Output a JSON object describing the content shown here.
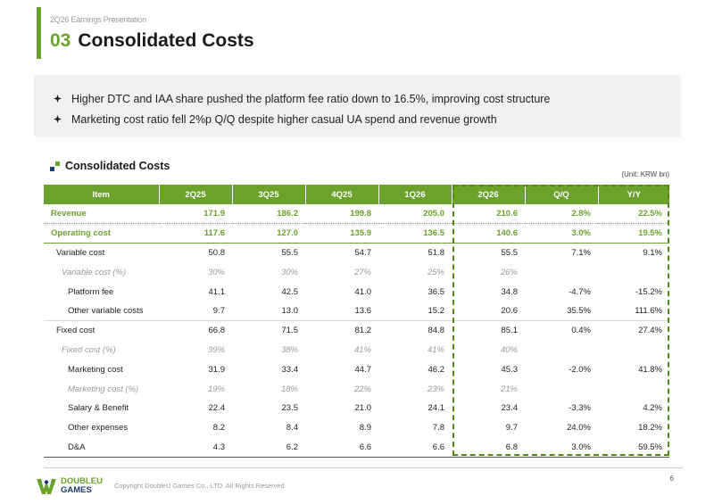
{
  "header": {
    "subtitle": "2Q26 Earnings Presentation",
    "section_number": "03",
    "title": "Consolidated Costs"
  },
  "summary": {
    "bullets": [
      "Higher DTC and IAA share pushed the platform fee ratio down to 16.5%, improving cost structure",
      "Marketing cost ratio fell 2%p Q/Q despite higher casual UA spend and revenue growth"
    ]
  },
  "table": {
    "heading": "Consolidated Costs",
    "unit": "(Unit: KRW bn)",
    "columns": [
      "Item",
      "2Q25",
      "3Q25",
      "4Q25",
      "1Q26",
      "2Q26",
      "Q/Q",
      "Y/Y"
    ],
    "rows": [
      {
        "label": "Revenue",
        "values": [
          "171.9",
          "186.2",
          "199.8",
          "205.0",
          "210.6",
          "2.8%",
          "22.5%"
        ]
      },
      {
        "label": "Operating cost",
        "values": [
          "117.6",
          "127.0",
          "135.9",
          "136.5",
          "140.6",
          "3.0%",
          "19.5%"
        ]
      },
      {
        "label": "Variable cost",
        "values": [
          "50.8",
          "55.5",
          "54.7",
          "51.8",
          "55.5",
          "7.1%",
          "9.1%"
        ]
      },
      {
        "label": "Variable cost (%)",
        "values": [
          "30%",
          "30%",
          "27%",
          "25%",
          "26%",
          "",
          ""
        ]
      },
      {
        "label": "Platform fee",
        "values": [
          "41.1",
          "42.5",
          "41.0",
          "36.5",
          "34.8",
          "-4.7%",
          "-15.2%"
        ]
      },
      {
        "label": "Other variable costs",
        "values": [
          "9.7",
          "13.0",
          "13.6",
          "15.2",
          "20.6",
          "35.5%",
          "111.6%"
        ]
      },
      {
        "label": "Fixed cost",
        "values": [
          "66.8",
          "71.5",
          "81.2",
          "84.8",
          "85.1",
          "0.4%",
          "27.4%"
        ]
      },
      {
        "label": "Fixed cost (%)",
        "values": [
          "39%",
          "38%",
          "41%",
          "41%",
          "40%",
          "",
          ""
        ]
      },
      {
        "label": "Marketing cost",
        "values": [
          "31.9",
          "33.4",
          "44.7",
          "46.2",
          "45.3",
          "-2.0%",
          "41.8%"
        ]
      },
      {
        "label": "Marketing cost (%)",
        "values": [
          "19%",
          "18%",
          "22%",
          "23%",
          "21%",
          "",
          ""
        ]
      },
      {
        "label": "Salary & Benefit",
        "values": [
          "22.4",
          "23.5",
          "21.0",
          "24.1",
          "23.4",
          "-3.3%",
          "4.2%"
        ]
      },
      {
        "label": "Other expenses",
        "values": [
          "8.2",
          "8.4",
          "8.9",
          "7.8",
          "9.7",
          "24.0%",
          "18.2%"
        ]
      },
      {
        "label": "D&A",
        "values": [
          "4.3",
          "6.2",
          "6.6",
          "6.6",
          "6.8",
          "3.0%",
          "59.5%"
        ]
      }
    ]
  },
  "footer": {
    "logo_line1": "DOUBLEU",
    "logo_line2": "GAMES",
    "copyright": "Copyright DoubleU Games Co., LTD. All Rights Reserved",
    "page_number": "6"
  },
  "colors": {
    "accent_green": "#6aa22c",
    "navy": "#1e3a6e",
    "dashed_highlight": "#4e8a1a"
  },
  "icons": {
    "bullet": "diamond-bullet-icon",
    "section": "section-squares-icon",
    "logo": "doubleu-logo-icon"
  }
}
